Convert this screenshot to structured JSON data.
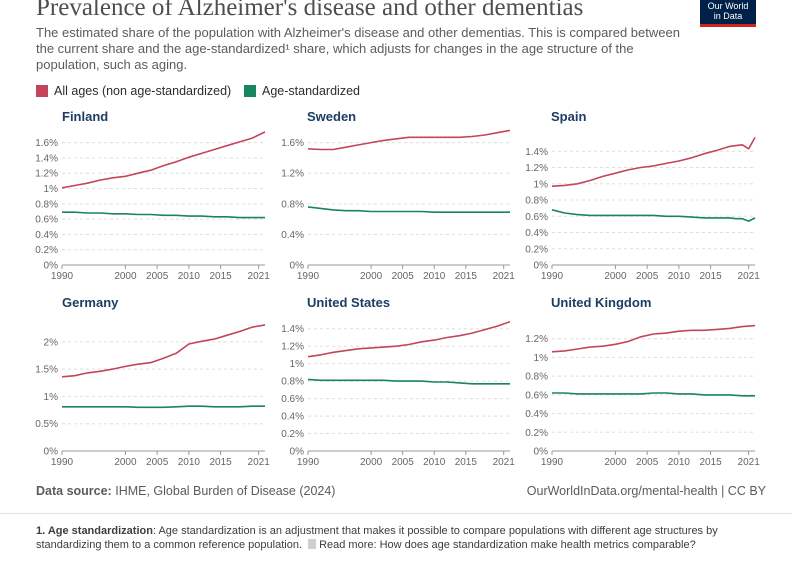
{
  "header": {
    "title": "Prevalence of Alzheimer's disease and other dementias",
    "subtitle": "The estimated share of the population with Alzheimer's disease and other dementias. This is compared between the current share and the age-standardized¹ share, which adjusts for changes in the age structure of the population, such as aging.",
    "logo_line1": "Our World",
    "logo_line2": "in Data"
  },
  "legend": {
    "items": [
      {
        "label": "All ages (non age-standardized)",
        "color": "#c4455b"
      },
      {
        "label": "Age-standardized",
        "color": "#18855f"
      }
    ]
  },
  "chart_data": [
    {
      "type": "line",
      "title": "Finland",
      "x": [
        1990,
        1992,
        1994,
        1996,
        1998,
        2000,
        2002,
        2004,
        2006,
        2008,
        2010,
        2012,
        2014,
        2016,
        2018,
        2020,
        2022
      ],
      "ylim": [
        0,
        1.7
      ],
      "yticks": [
        0,
        0.2,
        0.4,
        0.6,
        0.8,
        1.0,
        1.2,
        1.4,
        1.6
      ],
      "ytick_labels": [
        "0%",
        "0.2%",
        "0.4%",
        "0.6%",
        "0.8%",
        "1%",
        "1.2%",
        "1.4%",
        "1.6%"
      ],
      "xticks": [
        1990,
        2000,
        2005,
        2010,
        2015,
        2021
      ],
      "series": [
        {
          "name": "All ages (non age-standardized)",
          "values": [
            1.01,
            1.04,
            1.07,
            1.11,
            1.14,
            1.16,
            1.2,
            1.24,
            1.3,
            1.35,
            1.41,
            1.46,
            1.51,
            1.56,
            1.61,
            1.66,
            1.74
          ]
        },
        {
          "name": "Age-standardized",
          "values": [
            0.69,
            0.69,
            0.68,
            0.68,
            0.67,
            0.67,
            0.66,
            0.66,
            0.65,
            0.65,
            0.64,
            0.64,
            0.63,
            0.63,
            0.62,
            0.62,
            0.62
          ]
        }
      ]
    },
    {
      "type": "line",
      "title": "Sweden",
      "x": [
        1990,
        1992,
        1994,
        1996,
        1998,
        2000,
        2002,
        2004,
        2006,
        2008,
        2010,
        2012,
        2014,
        2016,
        2018,
        2020,
        2022
      ],
      "ylim": [
        0,
        1.7
      ],
      "yticks": [
        0,
        0.4,
        0.8,
        1.2,
        1.6
      ],
      "ytick_labels": [
        "0%",
        "0.4%",
        "0.8%",
        "1.2%",
        "1.6%"
      ],
      "xticks": [
        1990,
        2000,
        2005,
        2010,
        2015,
        2021
      ],
      "series": [
        {
          "name": "All ages (non age-standardized)",
          "values": [
            1.52,
            1.51,
            1.51,
            1.54,
            1.57,
            1.6,
            1.63,
            1.65,
            1.67,
            1.67,
            1.67,
            1.67,
            1.67,
            1.68,
            1.7,
            1.73,
            1.76
          ]
        },
        {
          "name": "Age-standardized",
          "values": [
            0.76,
            0.74,
            0.72,
            0.71,
            0.71,
            0.7,
            0.7,
            0.7,
            0.7,
            0.7,
            0.69,
            0.69,
            0.69,
            0.69,
            0.69,
            0.69,
            0.69
          ]
        }
      ]
    },
    {
      "type": "line",
      "title": "Spain",
      "x": [
        1990,
        1992,
        1994,
        1996,
        1998,
        2000,
        2002,
        2004,
        2006,
        2008,
        2010,
        2012,
        2014,
        2016,
        2018,
        2019,
        2020,
        2021,
        2022
      ],
      "ylim": [
        0,
        1.6
      ],
      "yticks": [
        0,
        0.2,
        0.4,
        0.6,
        0.8,
        1.0,
        1.2,
        1.4
      ],
      "ytick_labels": [
        "0%",
        "0.2%",
        "0.4%",
        "0.6%",
        "0.8%",
        "1%",
        "1.2%",
        "1.4%"
      ],
      "xticks": [
        1990,
        2000,
        2005,
        2010,
        2015,
        2021
      ],
      "series": [
        {
          "name": "All ages (non age-standardized)",
          "values": [
            0.97,
            0.98,
            1.0,
            1.04,
            1.09,
            1.13,
            1.17,
            1.2,
            1.22,
            1.25,
            1.28,
            1.32,
            1.37,
            1.41,
            1.46,
            1.47,
            1.48,
            1.43,
            1.57
          ]
        },
        {
          "name": "Age-standardized",
          "values": [
            0.68,
            0.64,
            0.62,
            0.61,
            0.61,
            0.61,
            0.61,
            0.61,
            0.61,
            0.6,
            0.6,
            0.59,
            0.58,
            0.58,
            0.58,
            0.57,
            0.57,
            0.54,
            0.58
          ]
        }
      ]
    },
    {
      "type": "line",
      "title": "Germany",
      "x": [
        1990,
        1992,
        1994,
        1996,
        1998,
        2000,
        2002,
        2004,
        2006,
        2008,
        2010,
        2012,
        2014,
        2016,
        2018,
        2020,
        2022
      ],
      "ylim": [
        0,
        2.4
      ],
      "yticks": [
        0,
        0.5,
        1.0,
        1.5,
        2.0
      ],
      "ytick_labels": [
        "0%",
        "0.5%",
        "1%",
        "1.5%",
        "2%"
      ],
      "xticks": [
        1990,
        2000,
        2005,
        2010,
        2015,
        2021
      ],
      "series": [
        {
          "name": "All ages (non age-standardized)",
          "values": [
            1.36,
            1.38,
            1.43,
            1.46,
            1.5,
            1.55,
            1.59,
            1.62,
            1.7,
            1.79,
            1.96,
            2.01,
            2.05,
            2.12,
            2.19,
            2.27,
            2.31
          ]
        },
        {
          "name": "Age-standardized",
          "values": [
            0.81,
            0.81,
            0.81,
            0.81,
            0.81,
            0.81,
            0.8,
            0.8,
            0.8,
            0.81,
            0.82,
            0.82,
            0.81,
            0.81,
            0.81,
            0.82,
            0.82
          ]
        }
      ]
    },
    {
      "type": "line",
      "title": "United States",
      "x": [
        1990,
        1992,
        1994,
        1996,
        1998,
        2000,
        2002,
        2004,
        2006,
        2008,
        2010,
        2012,
        2014,
        2016,
        2018,
        2020,
        2022
      ],
      "ylim": [
        0,
        1.5
      ],
      "yticks": [
        0,
        0.2,
        0.4,
        0.6,
        0.8,
        1.0,
        1.2,
        1.4
      ],
      "ytick_labels": [
        "0%",
        "0.2%",
        "0.4%",
        "0.6%",
        "0.8%",
        "1%",
        "1.2%",
        "1.4%"
      ],
      "xticks": [
        1990,
        2000,
        2005,
        2010,
        2015,
        2021
      ],
      "series": [
        {
          "name": "All ages (non age-standardized)",
          "values": [
            1.08,
            1.1,
            1.13,
            1.15,
            1.17,
            1.18,
            1.19,
            1.2,
            1.22,
            1.25,
            1.27,
            1.3,
            1.32,
            1.35,
            1.39,
            1.43,
            1.48
          ]
        },
        {
          "name": "Age-standardized",
          "values": [
            0.82,
            0.81,
            0.81,
            0.81,
            0.81,
            0.81,
            0.81,
            0.8,
            0.8,
            0.8,
            0.79,
            0.79,
            0.78,
            0.77,
            0.77,
            0.77,
            0.77
          ]
        }
      ]
    },
    {
      "type": "line",
      "title": "United Kingdom",
      "x": [
        1990,
        1992,
        1994,
        1996,
        1998,
        2000,
        2002,
        2004,
        2006,
        2008,
        2010,
        2012,
        2014,
        2016,
        2018,
        2020,
        2022
      ],
      "ylim": [
        0,
        1.4
      ],
      "yticks": [
        0,
        0.2,
        0.4,
        0.6,
        0.8,
        1.0,
        1.2
      ],
      "ytick_labels": [
        "0%",
        "0.2%",
        "0.4%",
        "0.6%",
        "0.8%",
        "1%",
        "1.2%"
      ],
      "xticks": [
        1990,
        2000,
        2005,
        2010,
        2015,
        2021
      ],
      "series": [
        {
          "name": "All ages (non age-standardized)",
          "values": [
            1.06,
            1.07,
            1.09,
            1.11,
            1.12,
            1.14,
            1.17,
            1.22,
            1.25,
            1.26,
            1.28,
            1.29,
            1.29,
            1.3,
            1.31,
            1.33,
            1.34
          ]
        },
        {
          "name": "Age-standardized",
          "values": [
            0.62,
            0.62,
            0.61,
            0.61,
            0.61,
            0.61,
            0.61,
            0.61,
            0.62,
            0.62,
            0.61,
            0.61,
            0.6,
            0.6,
            0.6,
            0.59,
            0.59
          ]
        }
      ]
    }
  ],
  "footer": {
    "source_label": "Data source:",
    "source_text": "IHME, Global Burden of Disease (2024)",
    "url_text": "OurWorldInData.org/mental-health | CC BY"
  },
  "footnote": {
    "label": "1. Age standardization",
    "text": ": Age standardization is an adjustment that makes it possible to compare populations with different age structures by standardizing them to a common reference population.",
    "link_text": "Read more: How does age standardization make health metrics comparable?"
  },
  "colors": {
    "all_ages": "#c4455b",
    "age_standardized": "#18855f",
    "panel_title": "#1d3d63",
    "axis_text": "#666666",
    "grid": "#dddddd"
  }
}
